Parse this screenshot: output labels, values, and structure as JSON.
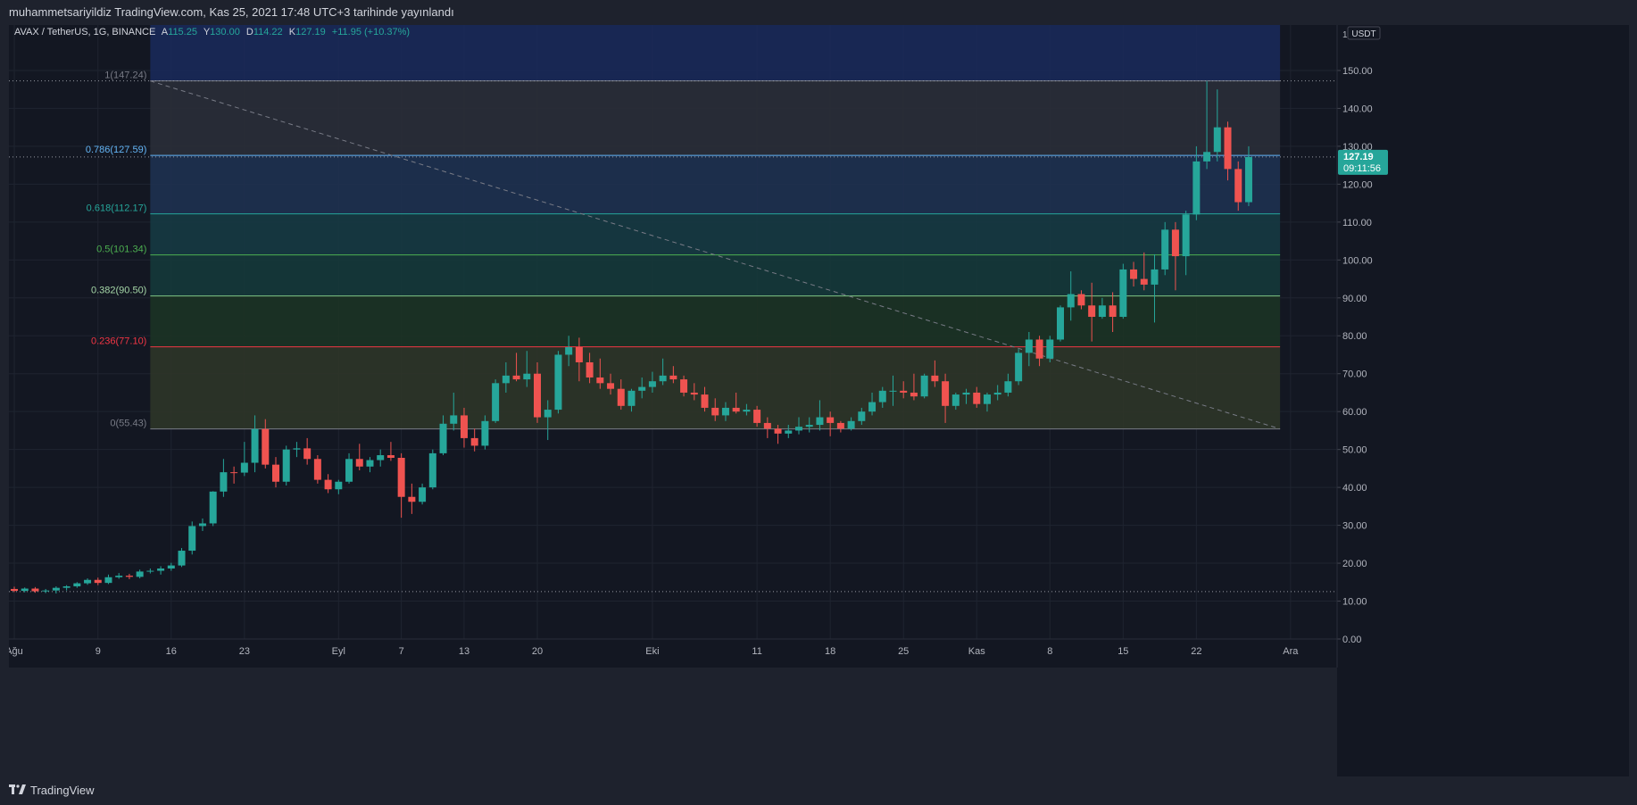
{
  "header": {
    "published": "muhammetsariyildiz TradingView.com, Kas 25, 2021 17:48 UTC+3 tarihinde yayınlandı"
  },
  "footer": {
    "brand": "TradingView",
    "logo": "tradingview-logo-icon"
  },
  "colors": {
    "up": "#26a69a",
    "down": "#ef5350",
    "bg": "#131722",
    "axis_text": "#b2b5be",
    "price_tag": "#26a69a"
  },
  "chart_data": {
    "type": "candlestick",
    "symbol_line": {
      "symbol": "AVAX / TetherUS, 1G, BINANCE",
      "open_label": "A",
      "open": "115.25",
      "high_label": "Y",
      "high": "130.00",
      "low_label": "D",
      "low": "114.22",
      "close_label": "K",
      "close": "127.19",
      "change": "+11.95 (+10.37%)"
    },
    "currency": "USDT",
    "ylim": [
      0,
      162
    ],
    "y_ticks": [
      0,
      10,
      20,
      30,
      40,
      50,
      60,
      70,
      80,
      90,
      100,
      110,
      120,
      130,
      140,
      150
    ],
    "y_tick_labels": [
      "0.00",
      "10.00",
      "20.00",
      "30.00",
      "40.00",
      "50.00",
      "60.00",
      "70.00",
      "80.00",
      "90.00",
      "100.00",
      "110.00",
      "120.00",
      "130.00",
      "140.00",
      "150.00"
    ],
    "log_corner_tick": "1",
    "x_start_date": "2021-08-01",
    "x_end_date": "2021-12-01",
    "x_ticks": [
      {
        "label": "Ağu",
        "date": "2021-08-01"
      },
      {
        "label": "9",
        "date": "2021-08-09"
      },
      {
        "label": "16",
        "date": "2021-08-16"
      },
      {
        "label": "23",
        "date": "2021-08-23"
      },
      {
        "label": "Eyl",
        "date": "2021-09-01"
      },
      {
        "label": "7",
        "date": "2021-09-07"
      },
      {
        "label": "13",
        "date": "2021-09-13"
      },
      {
        "label": "20",
        "date": "2021-09-20"
      },
      {
        "label": "Eki",
        "date": "2021-10-01"
      },
      {
        "label": "11",
        "date": "2021-10-11"
      },
      {
        "label": "18",
        "date": "2021-10-18"
      },
      {
        "label": "25",
        "date": "2021-10-25"
      },
      {
        "label": "Kas",
        "date": "2021-11-01"
      },
      {
        "label": "8",
        "date": "2021-11-08"
      },
      {
        "label": "15",
        "date": "2021-11-15"
      },
      {
        "label": "22",
        "date": "2021-11-22"
      },
      {
        "label": "Ara",
        "date": "2021-12-01"
      }
    ],
    "last_price": {
      "value": 127.19,
      "label": "127.19",
      "countdown": "09:11:56"
    },
    "horizontal_lines": [
      147.24,
      127.19,
      12.5
    ],
    "fib": {
      "start_date": "2021-08-14",
      "end_date": "2021-11-30",
      "high": 147.24,
      "low": 55.43,
      "levels": [
        {
          "ratio": "1",
          "value": 147.24,
          "label": "1(147.24)",
          "line": "#787b86",
          "fill": "#2a2e39",
          "label_color": "#787b86"
        },
        {
          "ratio": "0.786",
          "value": 127.59,
          "label": "0.786(127.59)",
          "line": "#64b5f6",
          "fill": "#1e3150",
          "label_color": "#64b5f6"
        },
        {
          "ratio": "0.618",
          "value": 112.17,
          "label": "0.618(112.17)",
          "line": "#26a69a",
          "fill": "#163a42",
          "label_color": "#26a69a"
        },
        {
          "ratio": "0.5",
          "value": 101.34,
          "label": "0.5(101.34)",
          "line": "#4caf50",
          "fill": "#15383a",
          "label_color": "#4caf50"
        },
        {
          "ratio": "0.382",
          "value": 90.5,
          "label": "0.382(90.50)",
          "line": "#81c784",
          "fill": "#1c3325",
          "label_color": "#a5d6a7"
        },
        {
          "ratio": "0.236",
          "value": 77.1,
          "label": "0.236(77.10)",
          "line": "#f23645",
          "fill": "#2d3528",
          "label_color": "#f23645"
        },
        {
          "ratio": "0",
          "value": 55.43,
          "label": "0(55.43)",
          "line": "#787b86",
          "fill": "#3d1f25",
          "label_color": "#787b86"
        }
      ],
      "top_zone_fill": "#1a2a5c"
    },
    "trendline": {
      "from": {
        "date": "2021-08-14",
        "value": 147.24
      },
      "to": {
        "date": "2021-11-30",
        "value": 55.43
      }
    },
    "candles": [
      {
        "d": "2021-08-01",
        "o": 13.2,
        "h": 13.8,
        "l": 12.4,
        "c": 12.7
      },
      {
        "d": "2021-08-02",
        "o": 12.7,
        "h": 13.6,
        "l": 12.3,
        "c": 13.3
      },
      {
        "d": "2021-08-03",
        "o": 13.3,
        "h": 13.7,
        "l": 12.2,
        "c": 12.6
      },
      {
        "d": "2021-08-04",
        "o": 12.6,
        "h": 13.2,
        "l": 12.1,
        "c": 12.8
      },
      {
        "d": "2021-08-05",
        "o": 12.8,
        "h": 13.9,
        "l": 12.0,
        "c": 13.5
      },
      {
        "d": "2021-08-06",
        "o": 13.5,
        "h": 14.2,
        "l": 12.8,
        "c": 13.9
      },
      {
        "d": "2021-08-07",
        "o": 13.9,
        "h": 15.0,
        "l": 13.5,
        "c": 14.7
      },
      {
        "d": "2021-08-08",
        "o": 14.7,
        "h": 16.0,
        "l": 14.3,
        "c": 15.6
      },
      {
        "d": "2021-08-09",
        "o": 15.6,
        "h": 16.2,
        "l": 14.2,
        "c": 14.8
      },
      {
        "d": "2021-08-10",
        "o": 14.8,
        "h": 17.0,
        "l": 14.5,
        "c": 16.3
      },
      {
        "d": "2021-08-11",
        "o": 16.3,
        "h": 17.4,
        "l": 15.9,
        "c": 16.7
      },
      {
        "d": "2021-08-12",
        "o": 16.7,
        "h": 17.2,
        "l": 15.8,
        "c": 16.4
      },
      {
        "d": "2021-08-13",
        "o": 16.4,
        "h": 18.3,
        "l": 16.0,
        "c": 17.8
      },
      {
        "d": "2021-08-14",
        "o": 17.8,
        "h": 18.6,
        "l": 17.3,
        "c": 18.0
      },
      {
        "d": "2021-08-15",
        "o": 18.0,
        "h": 19.2,
        "l": 17.0,
        "c": 18.6
      },
      {
        "d": "2021-08-16",
        "o": 18.6,
        "h": 20.1,
        "l": 18.0,
        "c": 19.4
      },
      {
        "d": "2021-08-17",
        "o": 19.4,
        "h": 24.0,
        "l": 19.0,
        "c": 23.3
      },
      {
        "d": "2021-08-18",
        "o": 23.3,
        "h": 31.0,
        "l": 22.3,
        "c": 29.8
      },
      {
        "d": "2021-08-19",
        "o": 29.8,
        "h": 31.8,
        "l": 28.5,
        "c": 30.5
      },
      {
        "d": "2021-08-20",
        "o": 30.5,
        "h": 39.0,
        "l": 29.8,
        "c": 38.9
      },
      {
        "d": "2021-08-21",
        "o": 38.9,
        "h": 47.5,
        "l": 37.5,
        "c": 44.0
      },
      {
        "d": "2021-08-22",
        "o": 44.0,
        "h": 45.5,
        "l": 41.0,
        "c": 43.9
      },
      {
        "d": "2021-08-23",
        "o": 43.9,
        "h": 52.0,
        "l": 43.0,
        "c": 46.5
      },
      {
        "d": "2021-08-24",
        "o": 46.5,
        "h": 59.0,
        "l": 44.0,
        "c": 55.4
      },
      {
        "d": "2021-08-25",
        "o": 55.4,
        "h": 58.0,
        "l": 45.0,
        "c": 46.0
      },
      {
        "d": "2021-08-26",
        "o": 46.0,
        "h": 48.0,
        "l": 40.0,
        "c": 41.5
      },
      {
        "d": "2021-08-27",
        "o": 41.5,
        "h": 51.0,
        "l": 40.5,
        "c": 50.0
      },
      {
        "d": "2021-08-28",
        "o": 50.0,
        "h": 52.0,
        "l": 48.0,
        "c": 50.3
      },
      {
        "d": "2021-08-29",
        "o": 50.3,
        "h": 53.0,
        "l": 46.0,
        "c": 47.5
      },
      {
        "d": "2021-08-30",
        "o": 47.5,
        "h": 48.5,
        "l": 41.0,
        "c": 42.0
      },
      {
        "d": "2021-08-31",
        "o": 42.0,
        "h": 43.5,
        "l": 38.5,
        "c": 39.5
      },
      {
        "d": "2021-09-01",
        "o": 39.5,
        "h": 42.0,
        "l": 38.2,
        "c": 41.5
      },
      {
        "d": "2021-09-02",
        "o": 41.5,
        "h": 49.0,
        "l": 41.0,
        "c": 47.5
      },
      {
        "d": "2021-09-03",
        "o": 47.5,
        "h": 51.5,
        "l": 44.5,
        "c": 45.5
      },
      {
        "d": "2021-09-04",
        "o": 45.5,
        "h": 48.0,
        "l": 44.0,
        "c": 47.2
      },
      {
        "d": "2021-09-05",
        "o": 47.2,
        "h": 50.0,
        "l": 45.5,
        "c": 48.5
      },
      {
        "d": "2021-09-06",
        "o": 48.5,
        "h": 52.0,
        "l": 47.0,
        "c": 47.8
      },
      {
        "d": "2021-09-07",
        "o": 47.8,
        "h": 49.0,
        "l": 32.0,
        "c": 37.5
      },
      {
        "d": "2021-09-08",
        "o": 37.5,
        "h": 41.0,
        "l": 33.0,
        "c": 36.2
      },
      {
        "d": "2021-09-09",
        "o": 36.2,
        "h": 41.0,
        "l": 35.5,
        "c": 40.0
      },
      {
        "d": "2021-09-10",
        "o": 40.0,
        "h": 50.0,
        "l": 39.5,
        "c": 49.0
      },
      {
        "d": "2021-09-11",
        "o": 49.0,
        "h": 59.0,
        "l": 48.5,
        "c": 56.8
      },
      {
        "d": "2021-09-12",
        "o": 56.8,
        "h": 65.0,
        "l": 55.0,
        "c": 59.0
      },
      {
        "d": "2021-09-13",
        "o": 59.0,
        "h": 61.0,
        "l": 50.5,
        "c": 53.0
      },
      {
        "d": "2021-09-14",
        "o": 53.0,
        "h": 55.5,
        "l": 49.5,
        "c": 51.0
      },
      {
        "d": "2021-09-15",
        "o": 51.0,
        "h": 59.0,
        "l": 50.0,
        "c": 57.5
      },
      {
        "d": "2021-09-16",
        "o": 57.5,
        "h": 68.5,
        "l": 57.0,
        "c": 67.5
      },
      {
        "d": "2021-09-17",
        "o": 67.5,
        "h": 73.0,
        "l": 65.0,
        "c": 69.5
      },
      {
        "d": "2021-09-18",
        "o": 69.5,
        "h": 75.5,
        "l": 68.0,
        "c": 68.5
      },
      {
        "d": "2021-09-19",
        "o": 68.5,
        "h": 76.0,
        "l": 66.5,
        "c": 70.0
      },
      {
        "d": "2021-09-20",
        "o": 70.0,
        "h": 73.0,
        "l": 57.0,
        "c": 58.5
      },
      {
        "d": "2021-09-21",
        "o": 58.5,
        "h": 63.0,
        "l": 52.5,
        "c": 60.5
      },
      {
        "d": "2021-09-22",
        "o": 60.5,
        "h": 76.0,
        "l": 59.5,
        "c": 75.0
      },
      {
        "d": "2021-09-23",
        "o": 75.0,
        "h": 80.0,
        "l": 72.0,
        "c": 77.0
      },
      {
        "d": "2021-09-24",
        "o": 77.0,
        "h": 79.5,
        "l": 68.0,
        "c": 73.0
      },
      {
        "d": "2021-09-25",
        "o": 73.0,
        "h": 75.5,
        "l": 67.5,
        "c": 69.0
      },
      {
        "d": "2021-09-26",
        "o": 69.0,
        "h": 74.0,
        "l": 66.0,
        "c": 67.5
      },
      {
        "d": "2021-09-27",
        "o": 67.5,
        "h": 70.0,
        "l": 64.5,
        "c": 66.0
      },
      {
        "d": "2021-09-28",
        "o": 66.0,
        "h": 68.5,
        "l": 60.5,
        "c": 61.5
      },
      {
        "d": "2021-09-29",
        "o": 61.5,
        "h": 66.0,
        "l": 60.0,
        "c": 65.5
      },
      {
        "d": "2021-09-30",
        "o": 65.5,
        "h": 69.0,
        "l": 63.5,
        "c": 66.5
      },
      {
        "d": "2021-10-01",
        "o": 66.5,
        "h": 70.5,
        "l": 65.0,
        "c": 68.0
      },
      {
        "d": "2021-10-02",
        "o": 68.0,
        "h": 74.0,
        "l": 67.0,
        "c": 69.5
      },
      {
        "d": "2021-10-03",
        "o": 69.5,
        "h": 72.0,
        "l": 67.5,
        "c": 68.5
      },
      {
        "d": "2021-10-04",
        "o": 68.5,
        "h": 69.5,
        "l": 64.0,
        "c": 65.0
      },
      {
        "d": "2021-10-05",
        "o": 65.0,
        "h": 67.5,
        "l": 63.0,
        "c": 64.5
      },
      {
        "d": "2021-10-06",
        "o": 64.5,
        "h": 66.5,
        "l": 60.0,
        "c": 61.0
      },
      {
        "d": "2021-10-07",
        "o": 61.0,
        "h": 63.5,
        "l": 57.5,
        "c": 59.0
      },
      {
        "d": "2021-10-08",
        "o": 59.0,
        "h": 62.5,
        "l": 57.5,
        "c": 61.0
      },
      {
        "d": "2021-10-09",
        "o": 61.0,
        "h": 65.0,
        "l": 59.5,
        "c": 60.0
      },
      {
        "d": "2021-10-10",
        "o": 60.0,
        "h": 62.0,
        "l": 59.0,
        "c": 60.5
      },
      {
        "d": "2021-10-11",
        "o": 60.5,
        "h": 61.5,
        "l": 56.0,
        "c": 57.0
      },
      {
        "d": "2021-10-12",
        "o": 57.0,
        "h": 58.5,
        "l": 53.0,
        "c": 55.5
      },
      {
        "d": "2021-10-13",
        "o": 55.5,
        "h": 56.5,
        "l": 51.5,
        "c": 54.2
      },
      {
        "d": "2021-10-14",
        "o": 54.2,
        "h": 56.5,
        "l": 53.0,
        "c": 55.0
      },
      {
        "d": "2021-10-15",
        "o": 55.0,
        "h": 58.5,
        "l": 54.0,
        "c": 56.0
      },
      {
        "d": "2021-10-16",
        "o": 56.0,
        "h": 58.5,
        "l": 54.5,
        "c": 56.5
      },
      {
        "d": "2021-10-17",
        "o": 56.5,
        "h": 63.0,
        "l": 55.0,
        "c": 58.5
      },
      {
        "d": "2021-10-18",
        "o": 58.5,
        "h": 60.0,
        "l": 53.5,
        "c": 57.0
      },
      {
        "d": "2021-10-19",
        "o": 57.0,
        "h": 57.5,
        "l": 54.5,
        "c": 55.5
      },
      {
        "d": "2021-10-20",
        "o": 55.5,
        "h": 58.5,
        "l": 55.0,
        "c": 57.5
      },
      {
        "d": "2021-10-21",
        "o": 57.5,
        "h": 61.0,
        "l": 56.5,
        "c": 60.0
      },
      {
        "d": "2021-10-22",
        "o": 60.0,
        "h": 65.0,
        "l": 59.0,
        "c": 62.5
      },
      {
        "d": "2021-10-23",
        "o": 62.5,
        "h": 66.5,
        "l": 61.0,
        "c": 65.5
      },
      {
        "d": "2021-10-24",
        "o": 65.5,
        "h": 69.5,
        "l": 61.5,
        "c": 65.5
      },
      {
        "d": "2021-10-25",
        "o": 65.5,
        "h": 68.0,
        "l": 63.5,
        "c": 65.0
      },
      {
        "d": "2021-10-26",
        "o": 65.0,
        "h": 70.0,
        "l": 63.0,
        "c": 64.0
      },
      {
        "d": "2021-10-27",
        "o": 64.0,
        "h": 70.0,
        "l": 63.5,
        "c": 69.5
      },
      {
        "d": "2021-10-28",
        "o": 69.5,
        "h": 73.5,
        "l": 66.5,
        "c": 68.0
      },
      {
        "d": "2021-10-29",
        "o": 68.0,
        "h": 70.0,
        "l": 57.0,
        "c": 61.5
      },
      {
        "d": "2021-10-30",
        "o": 61.5,
        "h": 65.0,
        "l": 60.5,
        "c": 64.5
      },
      {
        "d": "2021-10-31",
        "o": 64.5,
        "h": 66.0,
        "l": 62.0,
        "c": 65.0
      },
      {
        "d": "2021-11-01",
        "o": 65.0,
        "h": 66.5,
        "l": 61.0,
        "c": 62.0
      },
      {
        "d": "2021-11-02",
        "o": 62.0,
        "h": 65.0,
        "l": 60.0,
        "c": 64.5
      },
      {
        "d": "2021-11-03",
        "o": 64.5,
        "h": 67.0,
        "l": 63.0,
        "c": 65.0
      },
      {
        "d": "2021-11-04",
        "o": 65.0,
        "h": 70.0,
        "l": 64.0,
        "c": 68.0
      },
      {
        "d": "2021-11-05",
        "o": 68.0,
        "h": 76.5,
        "l": 67.0,
        "c": 75.5
      },
      {
        "d": "2021-11-06",
        "o": 75.5,
        "h": 81.0,
        "l": 72.0,
        "c": 79.0
      },
      {
        "d": "2021-11-07",
        "o": 79.0,
        "h": 80.0,
        "l": 72.0,
        "c": 74.0
      },
      {
        "d": "2021-11-08",
        "o": 74.0,
        "h": 80.0,
        "l": 73.0,
        "c": 79.0
      },
      {
        "d": "2021-11-09",
        "o": 79.0,
        "h": 88.0,
        "l": 78.5,
        "c": 87.5
      },
      {
        "d": "2021-11-10",
        "o": 87.5,
        "h": 97.0,
        "l": 84.0,
        "c": 91.0
      },
      {
        "d": "2021-11-11",
        "o": 91.0,
        "h": 92.0,
        "l": 87.0,
        "c": 88.0
      },
      {
        "d": "2021-11-12",
        "o": 88.0,
        "h": 94.0,
        "l": 78.5,
        "c": 85.0
      },
      {
        "d": "2021-11-13",
        "o": 85.0,
        "h": 90.0,
        "l": 84.5,
        "c": 88.0
      },
      {
        "d": "2021-11-14",
        "o": 88.0,
        "h": 91.5,
        "l": 81.0,
        "c": 85.0
      },
      {
        "d": "2021-11-15",
        "o": 85.0,
        "h": 99.0,
        "l": 84.5,
        "c": 97.5
      },
      {
        "d": "2021-11-16",
        "o": 97.5,
        "h": 99.5,
        "l": 93.0,
        "c": 95.0
      },
      {
        "d": "2021-11-17",
        "o": 95.0,
        "h": 102.0,
        "l": 92.0,
        "c": 93.5
      },
      {
        "d": "2021-11-18",
        "o": 93.5,
        "h": 101.5,
        "l": 83.5,
        "c": 97.5
      },
      {
        "d": "2021-11-19",
        "o": 97.5,
        "h": 110.0,
        "l": 96.0,
        "c": 108.0
      },
      {
        "d": "2021-11-20",
        "o": 108.0,
        "h": 110.0,
        "l": 92.0,
        "c": 101.0
      },
      {
        "d": "2021-11-21",
        "o": 101.0,
        "h": 113.0,
        "l": 96.0,
        "c": 112.0
      },
      {
        "d": "2021-11-22",
        "o": 112.0,
        "h": 130.0,
        "l": 110.5,
        "c": 126.0
      },
      {
        "d": "2021-11-23",
        "o": 126.0,
        "h": 147.24,
        "l": 124.0,
        "c": 128.5
      },
      {
        "d": "2021-11-24",
        "o": 128.5,
        "h": 145.0,
        "l": 126.0,
        "c": 135.0
      },
      {
        "d": "2021-11-25",
        "o": 135.0,
        "h": 136.5,
        "l": 121.0,
        "c": 124.0
      },
      {
        "d": "2021-11-26",
        "o": 124.0,
        "h": 126.0,
        "l": 113.0,
        "c": 115.25
      },
      {
        "d": "2021-11-27",
        "o": 115.25,
        "h": 130.0,
        "l": 114.22,
        "c": 127.19
      }
    ]
  }
}
